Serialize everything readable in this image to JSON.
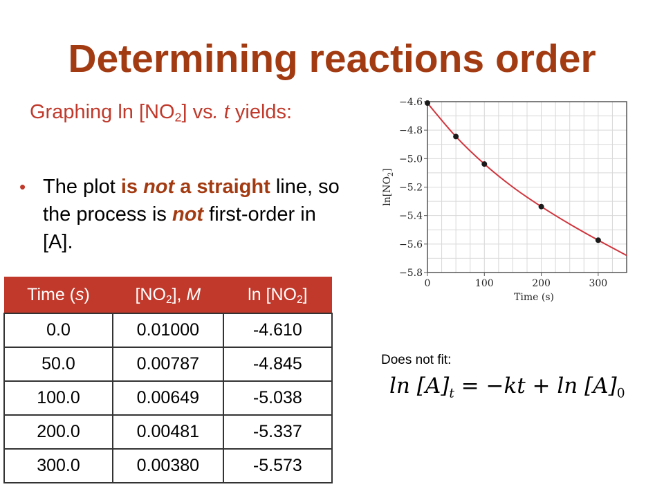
{
  "title": "Determining reactions order",
  "subtitle": {
    "before": "Graphing ln [NO",
    "sub": "2",
    "middle": "] vs",
    "italic": ". t",
    "after": " yields:"
  },
  "bullet": {
    "t1": "The plot ",
    "t2": "is ",
    "t3": "not",
    "t4": " a straight",
    "t5": " line, so the process is ",
    "t6": "not",
    "t7": " first-order in [A]."
  },
  "table": {
    "headers": [
      {
        "a": "Time (",
        "i": "s",
        "b": ")"
      },
      {
        "a": "[NO",
        "sub": "2",
        "b": "], ",
        "i": "M"
      },
      {
        "a": "ln [NO",
        "sub": "2",
        "b": "]"
      }
    ],
    "rows": [
      [
        "0.0",
        "0.01000",
        "-4.610"
      ],
      [
        "50.0",
        "0.00787",
        "-4.845"
      ],
      [
        "100.0",
        "0.00649",
        "-5.038"
      ],
      [
        "200.0",
        "0.00481",
        "-5.337"
      ],
      [
        "300.0",
        "0.00380",
        "-5.573"
      ]
    ]
  },
  "fit_label": "Does not fit:",
  "equation": {
    "p1": "ln [A]",
    "s1": "t",
    "p2": " = −kt + ln [A]",
    "s2": "0"
  },
  "chart_data": {
    "type": "scatter",
    "xlabel": "Time (s)",
    "ylabel_main": "ln[NO",
    "ylabel_sub": "2",
    "ylabel_end": "]",
    "xlim": [
      0,
      350
    ],
    "ylim": [
      -5.8,
      -4.6
    ],
    "xticks": [
      0,
      100,
      200,
      300
    ],
    "xtick_labels": [
      "0",
      "100",
      "200",
      "300"
    ],
    "yticks": [
      -4.6,
      -4.8,
      -5.0,
      -5.2,
      -5.4,
      -5.6,
      -5.8
    ],
    "ytick_labels": [
      "−4.6",
      "−4.8",
      "−5.0",
      "−5.2",
      "−5.4",
      "−5.6",
      "−5.8"
    ],
    "grid": true,
    "points": [
      {
        "x": 0,
        "y": -4.61
      },
      {
        "x": 50,
        "y": -4.845
      },
      {
        "x": 100,
        "y": -5.038
      },
      {
        "x": 200,
        "y": -5.337
      },
      {
        "x": 300,
        "y": -5.573
      }
    ],
    "curve": [
      {
        "x": 0,
        "y": -4.61
      },
      {
        "x": 50,
        "y": -4.845
      },
      {
        "x": 100,
        "y": -5.038
      },
      {
        "x": 150,
        "y": -5.2
      },
      {
        "x": 200,
        "y": -5.337
      },
      {
        "x": 250,
        "y": -5.46
      },
      {
        "x": 300,
        "y": -5.573
      },
      {
        "x": 350,
        "y": -5.68
      }
    ],
    "colors": {
      "curve": "#d0343c",
      "points": "#1a1a1a",
      "grid": "#d8d8d8",
      "frame": "#555555"
    }
  }
}
